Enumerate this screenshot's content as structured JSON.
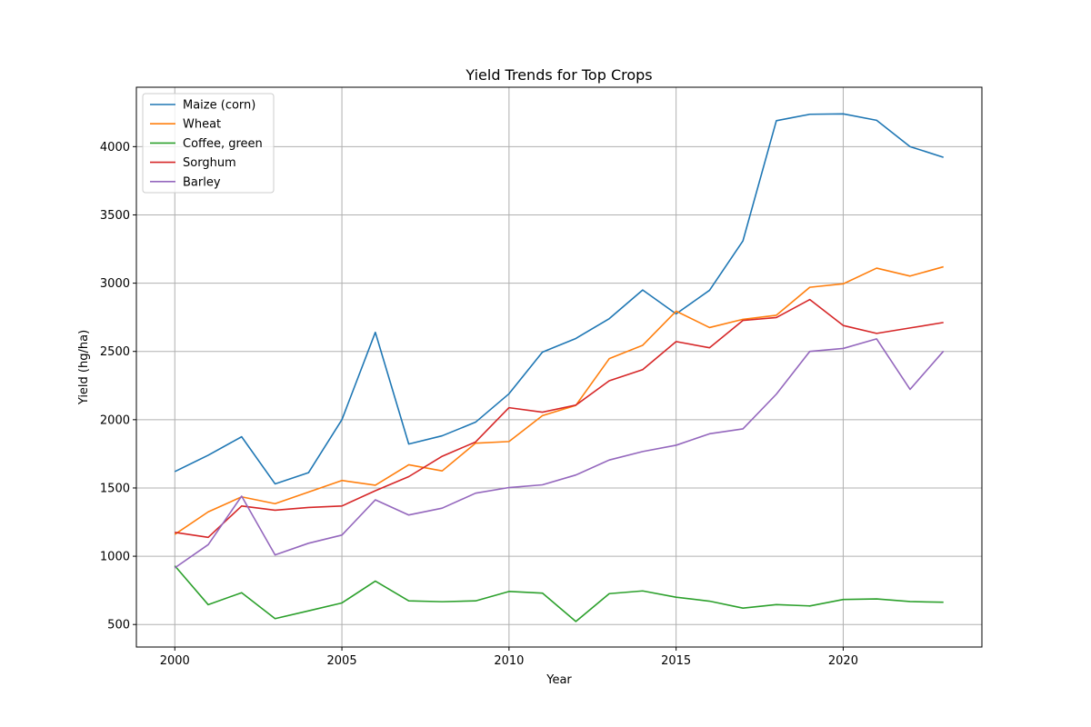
{
  "chart_data": {
    "type": "line",
    "title": "Yield Trends for Top Crops",
    "xlabel": "Year",
    "ylabel": "Yield (hg/ha)",
    "xlim": [
      1998.85,
      2024.15
    ],
    "ylim": [
      335,
      4435
    ],
    "xticks": [
      2000,
      2005,
      2010,
      2015,
      2020
    ],
    "yticks": [
      500,
      1000,
      1500,
      2000,
      2500,
      3000,
      3500,
      4000
    ],
    "grid": true,
    "legend_position": "upper-left",
    "x": [
      2000,
      2001,
      2002,
      2003,
      2004,
      2005,
      2006,
      2007,
      2008,
      2009,
      2010,
      2011,
      2012,
      2013,
      2014,
      2015,
      2016,
      2017,
      2018,
      2019,
      2020,
      2021,
      2022,
      2023
    ],
    "series": [
      {
        "name": "Maize (corn)",
        "color": "#1f77b4",
        "values": [
          1620,
          1740,
          1875,
          1530,
          1612,
          2000,
          2640,
          1822,
          1882,
          1982,
          2190,
          2495,
          2595,
          2740,
          2950,
          2775,
          2948,
          3310,
          4190,
          4237,
          4240,
          4193,
          4000,
          3922
        ]
      },
      {
        "name": "Wheat",
        "color": "#ff7f0e",
        "values": [
          1160,
          1325,
          1435,
          1385,
          1470,
          1555,
          1520,
          1670,
          1625,
          1828,
          1840,
          2030,
          2105,
          2447,
          2545,
          2795,
          2675,
          2735,
          2765,
          2970,
          2995,
          3110,
          3052,
          3120
        ]
      },
      {
        "name": "Coffee, green",
        "color": "#2ca02c",
        "values": [
          930,
          645,
          733,
          543,
          600,
          658,
          818,
          673,
          667,
          673,
          742,
          730,
          522,
          726,
          746,
          700,
          671,
          620,
          646,
          636,
          683,
          687,
          668,
          663
        ]
      },
      {
        "name": "Sorghum",
        "color": "#d62728",
        "values": [
          1175,
          1138,
          1368,
          1337,
          1357,
          1368,
          1480,
          1583,
          1732,
          1837,
          2088,
          2055,
          2107,
          2285,
          2367,
          2572,
          2527,
          2727,
          2748,
          2880,
          2690,
          2632,
          2672,
          2712
        ]
      },
      {
        "name": "Barley",
        "color": "#9467bd",
        "values": [
          915,
          1085,
          1440,
          1010,
          1095,
          1155,
          1413,
          1302,
          1352,
          1462,
          1503,
          1523,
          1595,
          1705,
          1767,
          1813,
          1897,
          1933,
          2187,
          2500,
          2522,
          2592,
          2222,
          2502
        ]
      }
    ]
  }
}
